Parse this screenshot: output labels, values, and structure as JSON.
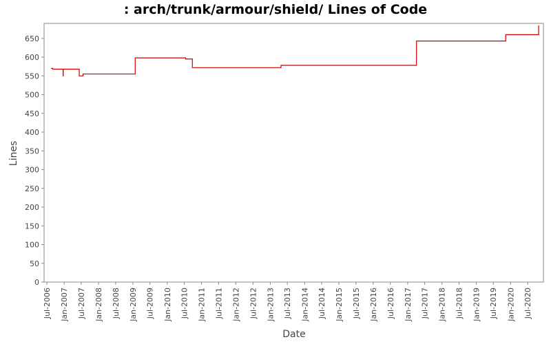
{
  "chart_data": {
    "type": "line",
    "title": ": arch/trunk/armour/shield/ Lines of Code",
    "xlabel": "Date",
    "ylabel": "Lines",
    "ylim": [
      0,
      690
    ],
    "xlim": [
      "2006-06-01",
      "2020-12-15"
    ],
    "grid": false,
    "line_color": "#cc0000",
    "y_ticks": [
      0,
      50,
      100,
      150,
      200,
      250,
      300,
      350,
      400,
      450,
      500,
      550,
      600,
      650
    ],
    "x_ticks": [
      {
        "date": "2006-07-01",
        "label": "Jul-2006"
      },
      {
        "date": "2007-01-01",
        "label": "Jan-2007"
      },
      {
        "date": "2007-07-01",
        "label": "Jul-2007"
      },
      {
        "date": "2008-01-01",
        "label": "Jan-2008"
      },
      {
        "date": "2008-07-01",
        "label": "Jul-2008"
      },
      {
        "date": "2009-01-01",
        "label": "Jan-2009"
      },
      {
        "date": "2009-07-01",
        "label": "Jul-2009"
      },
      {
        "date": "2010-01-01",
        "label": "Jan-2010"
      },
      {
        "date": "2010-07-01",
        "label": "Jul-2010"
      },
      {
        "date": "2011-01-01",
        "label": "Jan-2011"
      },
      {
        "date": "2011-07-01",
        "label": "Jul-2011"
      },
      {
        "date": "2012-01-01",
        "label": "Jan-2012"
      },
      {
        "date": "2012-07-01",
        "label": "Jul-2012"
      },
      {
        "date": "2013-01-01",
        "label": "Jan-2013"
      },
      {
        "date": "2013-07-01",
        "label": "Jul-2013"
      },
      {
        "date": "2014-01-01",
        "label": "Jan-2014"
      },
      {
        "date": "2014-07-01",
        "label": "Jul-2014"
      },
      {
        "date": "2015-01-01",
        "label": "Jan-2015"
      },
      {
        "date": "2015-07-01",
        "label": "Jul-2015"
      },
      {
        "date": "2016-01-01",
        "label": "Jan-2016"
      },
      {
        "date": "2016-07-01",
        "label": "Jul-2016"
      },
      {
        "date": "2017-01-01",
        "label": "Jan-2017"
      },
      {
        "date": "2017-07-01",
        "label": "Jul-2017"
      },
      {
        "date": "2018-01-01",
        "label": "Jan-2018"
      },
      {
        "date": "2018-07-01",
        "label": "Jul-2018"
      },
      {
        "date": "2019-01-01",
        "label": "Jan-2019"
      },
      {
        "date": "2019-07-01",
        "label": "Jul-2019"
      },
      {
        "date": "2020-01-01",
        "label": "Jan-2020"
      },
      {
        "date": "2020-07-01",
        "label": "Jul-2020"
      }
    ],
    "series": [
      {
        "points": [
          {
            "x": "2006-08-15",
            "y": 570
          },
          {
            "x": "2006-09-01",
            "y": 568
          },
          {
            "x": "2006-12-20",
            "y": 550
          },
          {
            "x": "2006-12-22",
            "y": 568
          },
          {
            "x": "2007-06-10",
            "y": 550
          },
          {
            "x": "2007-07-20",
            "y": 555
          },
          {
            "x": "2009-01-25",
            "y": 598
          },
          {
            "x": "2010-07-15",
            "y": 595
          },
          {
            "x": "2010-09-25",
            "y": 572
          },
          {
            "x": "2013-04-25",
            "y": 578
          },
          {
            "x": "2017-04-05",
            "y": 643
          },
          {
            "x": "2019-11-10",
            "y": 660
          },
          {
            "x": "2020-10-25",
            "y": 685
          }
        ],
        "end": "2020-10-25"
      }
    ]
  }
}
